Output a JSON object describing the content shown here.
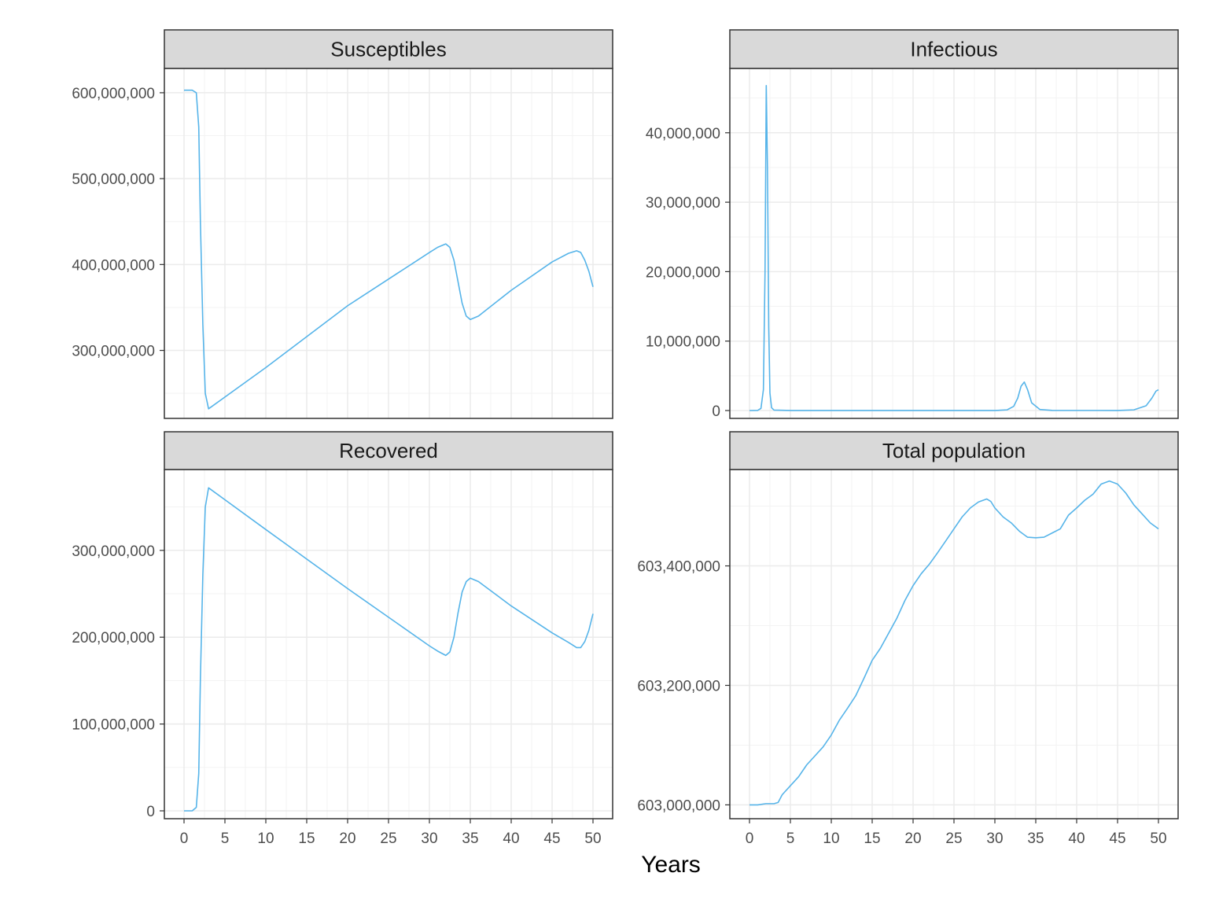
{
  "xlabel": "Years",
  "colors": {
    "series": "#56B4E9",
    "strip": "#d9d9d9",
    "grid_major": "#ebebeb",
    "grid_minor": "#f3f3f3",
    "border": "#333333"
  },
  "chart_data": [
    {
      "type": "line",
      "title": "Susceptibles",
      "xlim": [
        0,
        50
      ],
      "ylim": [
        230000000,
        610000000
      ],
      "x_ticks": [
        0,
        5,
        10,
        15,
        20,
        25,
        30,
        35,
        40,
        45,
        50
      ],
      "y_ticks": [
        300000000,
        400000000,
        500000000,
        600000000
      ],
      "y_tick_labels": [
        "300,000,000",
        "400,000,000",
        "500,000,000",
        "600,000,000"
      ],
      "show_x_tick_labels": false,
      "series": [
        {
          "x": [
            0,
            1,
            1.5,
            1.8,
            2.0,
            2.3,
            2.6,
            3.0,
            10,
            20,
            30,
            31,
            32,
            32.5,
            33,
            33.5,
            34,
            34.5,
            35,
            36,
            40,
            45,
            47,
            48,
            48.5,
            49,
            49.5,
            50
          ],
          "values": [
            603000000,
            603000000,
            600000000,
            560000000,
            450000000,
            330000000,
            250000000,
            232000000,
            280000000,
            352000000,
            414000000,
            420000000,
            424000000,
            420000000,
            405000000,
            380000000,
            355000000,
            340000000,
            336000000,
            340000000,
            370000000,
            403000000,
            413000000,
            416000000,
            414000000,
            405000000,
            392000000,
            374000000
          ]
        }
      ]
    },
    {
      "type": "line",
      "title": "Infectious",
      "xlim": [
        0,
        50
      ],
      "ylim": [
        0,
        47000000
      ],
      "x_ticks": [
        0,
        5,
        10,
        15,
        20,
        25,
        30,
        35,
        40,
        45,
        50
      ],
      "y_ticks": [
        0,
        10000000,
        20000000,
        30000000,
        40000000
      ],
      "y_tick_labels": [
        "0",
        "10,000,000",
        "20,000,000",
        "30,000,000",
        "40,000,000"
      ],
      "show_x_tick_labels": false,
      "series": [
        {
          "x": [
            0,
            1,
            1.4,
            1.7,
            1.9,
            2.05,
            2.2,
            2.35,
            2.5,
            2.7,
            3.0,
            5,
            20,
            30,
            31.5,
            32.3,
            32.8,
            33.2,
            33.6,
            34.0,
            34.5,
            35.5,
            37,
            45,
            47,
            48.5,
            49.2,
            49.7,
            50
          ],
          "values": [
            0,
            20000,
            300000,
            3000000,
            20000000,
            46800000,
            35000000,
            12000000,
            2500000,
            400000,
            60000,
            10000,
            5000,
            5000,
            100000,
            600000,
            1800000,
            3500000,
            4100000,
            3000000,
            1100000,
            150000,
            20000,
            10000,
            100000,
            700000,
            1800000,
            2800000,
            3000000
          ]
        }
      ]
    },
    {
      "type": "line",
      "title": "Recovered",
      "xlim": [
        0,
        50
      ],
      "ylim": [
        0,
        375000000
      ],
      "x_ticks": [
        0,
        5,
        10,
        15,
        20,
        25,
        30,
        35,
        40,
        45,
        50
      ],
      "x_tick_labels": [
        "0",
        "5",
        "10",
        "15",
        "20",
        "25",
        "30",
        "35",
        "40",
        "45",
        "50"
      ],
      "y_ticks": [
        0,
        100000000,
        200000000,
        300000000
      ],
      "y_tick_labels": [
        "0",
        "100,000,000",
        "200,000,000",
        "300,000,000"
      ],
      "show_x_tick_labels": true,
      "series": [
        {
          "x": [
            0,
            1,
            1.5,
            1.8,
            2.0,
            2.3,
            2.6,
            3.0,
            10,
            20,
            30,
            31,
            32,
            32.5,
            33,
            33.5,
            34,
            34.5,
            35,
            36,
            40,
            45,
            47,
            48,
            48.5,
            49,
            49.5,
            50
          ],
          "values": [
            0,
            0,
            4000000,
            43000000,
            152000000,
            272000000,
            350000000,
            372000000,
            324000000,
            256000000,
            190000000,
            184000000,
            179000000,
            183000000,
            200000000,
            228000000,
            252000000,
            264000000,
            268000000,
            264000000,
            236000000,
            205000000,
            194000000,
            188000000,
            188000000,
            195000000,
            208000000,
            227000000
          ]
        }
      ]
    },
    {
      "type": "line",
      "title": "Total population",
      "xlim": [
        0,
        50
      ],
      "ylim": [
        602990000,
        603535000
      ],
      "x_ticks": [
        0,
        5,
        10,
        15,
        20,
        25,
        30,
        35,
        40,
        45,
        50
      ],
      "x_tick_labels": [
        "0",
        "5",
        "10",
        "15",
        "20",
        "25",
        "30",
        "35",
        "40",
        "45",
        "50"
      ],
      "y_ticks": [
        603000000,
        603200000,
        603400000
      ],
      "y_tick_labels": [
        "603,000,000",
        "603,200,000",
        "603,400,000"
      ],
      "show_x_tick_labels": true,
      "series": [
        {
          "x": [
            0,
            1,
            2,
            3,
            3.5,
            4,
            5,
            6,
            7,
            8,
            9,
            10,
            11,
            12,
            13,
            14,
            15,
            16,
            17,
            18,
            19,
            20,
            21,
            22,
            23,
            24,
            25,
            26,
            27,
            28,
            29,
            29.5,
            30,
            31,
            32,
            33,
            34,
            35,
            36,
            37,
            38,
            39,
            40,
            41,
            42,
            43,
            44,
            45,
            46,
            47,
            48,
            49,
            50
          ],
          "values": [
            603000000,
            603000000,
            603002000,
            603002000,
            603004000,
            603017000,
            603032000,
            603047000,
            603067000,
            603082000,
            603097000,
            603117000,
            603142000,
            603162000,
            603183000,
            603212000,
            603242000,
            603262000,
            603287000,
            603312000,
            603342000,
            603367000,
            603387000,
            603403000,
            603422000,
            603442000,
            603462000,
            603482000,
            603497000,
            603507000,
            603512000,
            603508000,
            603497000,
            603482000,
            603472000,
            603458000,
            603448000,
            603447000,
            603448000,
            603455000,
            603462000,
            603485000,
            603497000,
            603510000,
            603520000,
            603537000,
            603542000,
            603537000,
            603522000,
            603502000,
            603487000,
            603472000,
            603462000
          ]
        }
      ]
    }
  ]
}
